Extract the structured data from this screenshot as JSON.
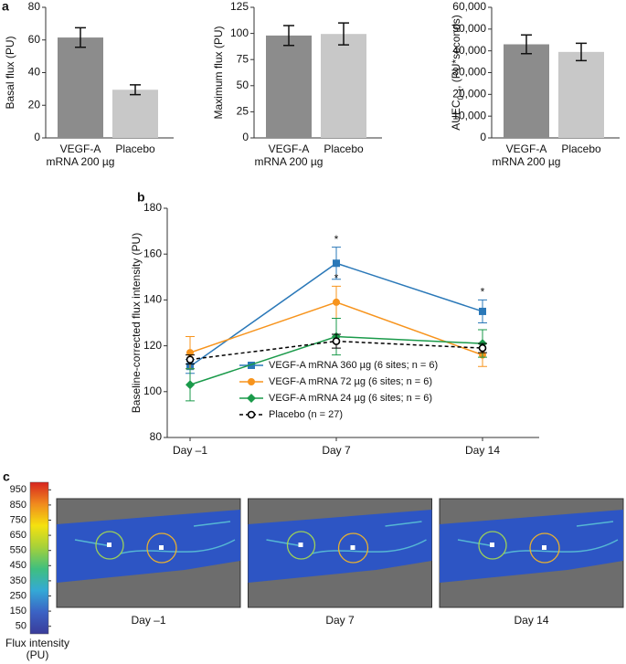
{
  "chart_data": [
    {
      "type": "bar",
      "panel": "a",
      "ylabel": "Basal flux (PU)",
      "categories": [
        "VEGF-A mRNA 200 µg",
        "Placebo"
      ],
      "values": [
        61.5,
        29.5
      ],
      "errors": [
        6,
        3
      ],
      "colors": [
        "#8c8c8c",
        "#c8c8c8"
      ],
      "ylim": [
        0,
        80
      ],
      "yticks": [
        0,
        20,
        40,
        60,
        80
      ]
    },
    {
      "type": "bar",
      "ylabel": "Maximum flux (PU)",
      "categories": [
        "VEGF-A mRNA 200 µg",
        "Placebo"
      ],
      "values": [
        98,
        99.5
      ],
      "errors": [
        9.5,
        10.5
      ],
      "colors": [
        "#8c8c8c",
        "#c8c8c8"
      ],
      "ylim": [
        0,
        125
      ],
      "yticks": [
        0,
        25,
        50,
        75,
        100,
        125
      ]
    },
    {
      "type": "bar",
      "ylabel": "AUEC",
      "ylabel_sub": "0–t",
      "ylabel_suffix": ", (PU*seconds)",
      "categories": [
        "VEGF-A mRNA 200 µg",
        "Placebo"
      ],
      "values": [
        43000,
        39500
      ],
      "errors": [
        4300,
        4000
      ],
      "colors": [
        "#8c8c8c",
        "#c8c8c8"
      ],
      "ylim": [
        0,
        60000
      ],
      "yticks": [
        0,
        {
          "value": 10000,
          "label": "10,000"
        },
        {
          "value": 20000,
          "label": "20,000"
        },
        {
          "value": 30000,
          "label": "30,000"
        },
        {
          "value": 40000,
          "label": "40,000"
        },
        {
          "value": 50000,
          "label": "50,000"
        },
        {
          "value": 60000,
          "label": "60,000"
        }
      ]
    },
    {
      "type": "line",
      "panel": "b",
      "ylabel": "Baseline-corrected flux intensity (PU)",
      "categories": [
        "Day –1",
        "Day 7",
        "Day 14"
      ],
      "ylim": [
        80,
        180
      ],
      "yticks": [
        80,
        100,
        120,
        140,
        160,
        180
      ],
      "legend": "center",
      "series": [
        {
          "name": "VEGF-A mRNA 360 µg (6 sites; n = 6)",
          "color": "#2a78b8",
          "marker": "square",
          "values": [
            111,
            156,
            135
          ],
          "errors": [
            3,
            7,
            5
          ]
        },
        {
          "name": "VEGF-A mRNA 72 µg (6 sites; n = 6)",
          "color": "#f7941d",
          "marker": "circle",
          "values": [
            117,
            139,
            116
          ],
          "errors": [
            7,
            7,
            5
          ]
        },
        {
          "name": "VEGF-A mRNA 24 µg (6 sites; n = 6)",
          "color": "#1a9a4a",
          "marker": "diamond",
          "values": [
            103,
            124,
            121
          ],
          "errors": [
            7,
            8,
            6
          ]
        },
        {
          "name": "Placebo (n = 27)",
          "color": "#000000",
          "marker": "open-circle",
          "dashed": true,
          "values": [
            114,
            122,
            119
          ],
          "errors": [
            2,
            3,
            2
          ]
        }
      ],
      "annotations": [
        {
          "text": "*",
          "series": 0,
          "category": 1
        },
        {
          "text": "*",
          "series": 1,
          "category": 1
        },
        {
          "text": "*",
          "series": 0,
          "category": 2
        }
      ]
    },
    {
      "type": "colorbar",
      "panel": "c",
      "label": "Flux intensity (PU)",
      "colors": [
        "#3a3c9a",
        "#3b62c4",
        "#34a9d6",
        "#3fbf7f",
        "#a5d13a",
        "#f5e10f",
        "#f08a1e",
        "#d7241f"
      ],
      "ylim": [
        0,
        1000
      ],
      "yticks": [
        50,
        150,
        250,
        350,
        450,
        550,
        650,
        750,
        850,
        950
      ],
      "captions": [
        "Day –1",
        "Day 7",
        "Day 14"
      ]
    }
  ]
}
